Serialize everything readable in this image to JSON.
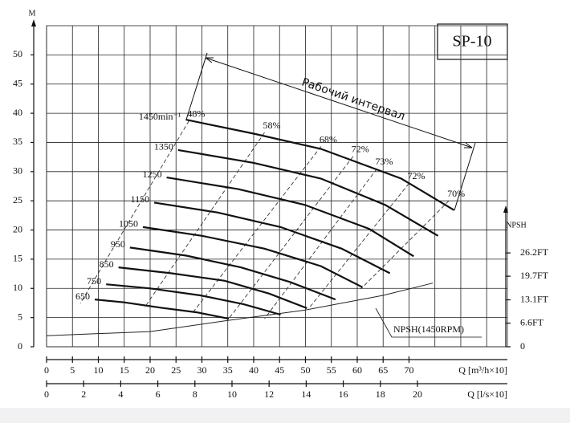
{
  "chart_data": {
    "type": "line",
    "title": "SP-10",
    "ylabel": "M",
    "y2label": "NPSH",
    "xlabel": "Q [m³/h×10]",
    "x2label": "Q [l/s×10]",
    "annotation": "Рабочий интервал",
    "xlim": [
      0,
      89
    ],
    "xticks": [
      0,
      5,
      10,
      15,
      20,
      25,
      30,
      35,
      40,
      45,
      50,
      55,
      60,
      65,
      70
    ],
    "x2lim": [
      0,
      24.85
    ],
    "x2ticks": [
      0,
      2,
      4,
      6,
      8,
      10,
      12,
      14,
      16,
      18,
      20
    ],
    "ylim": [
      0,
      55
    ],
    "yticks": [
      0,
      5,
      10,
      15,
      20,
      25,
      30,
      35,
      40,
      45,
      50
    ],
    "y2lim": [
      0,
      39
    ],
    "y2ticks": [
      0,
      {
        "value": 6.6,
        "label": "6.6FT"
      },
      {
        "value": 13.1,
        "label": "13.1FT"
      },
      {
        "value": 19.7,
        "label": "19.7FT"
      },
      {
        "value": 26.2,
        "label": "26.2FT"
      }
    ],
    "grid": true,
    "color": "#111111",
    "series": [
      {
        "name": "1450min⁻¹",
        "x": [
          26.9,
          40,
          53,
          68.5,
          78.7
        ],
        "y": [
          38.9,
          36.5,
          33.9,
          28.8,
          23.4
        ]
      },
      {
        "name": "1350",
        "x": [
          25.4,
          40,
          53,
          65.4,
          75.6
        ],
        "y": [
          33.7,
          31.5,
          28.8,
          24.3,
          19.0
        ]
      },
      {
        "name": "1250",
        "x": [
          23.2,
          37,
          49.9,
          62.3,
          70.9
        ],
        "y": [
          29.0,
          27.0,
          24.3,
          20.2,
          15.5
        ]
      },
      {
        "name": "1150",
        "x": [
          20.8,
          33,
          45.2,
          57,
          66.3
        ],
        "y": [
          24.7,
          23.0,
          20.5,
          16.8,
          12.6
        ]
      },
      {
        "name": "1050",
        "x": [
          18.6,
          30,
          42.1,
          53,
          61.0
        ],
        "y": [
          20.5,
          19.0,
          16.8,
          13.8,
          10.2
        ]
      },
      {
        "name": "950",
        "x": [
          16.1,
          27,
          37.5,
          47,
          55.8
        ],
        "y": [
          17.0,
          15.6,
          13.6,
          11.1,
          8.1
        ]
      },
      {
        "name": "850",
        "x": [
          13.9,
          24,
          34.4,
          43,
          50.3
        ],
        "y": [
          13.6,
          12.6,
          11.3,
          9.1,
          6.6
        ]
      },
      {
        "name": "750",
        "x": [
          11.5,
          20,
          29.7,
          38,
          45.2
        ],
        "y": [
          10.7,
          10.0,
          8.8,
          7.3,
          5.5
        ]
      },
      {
        "name": "650",
        "x": [
          9.3,
          15,
          22,
          29,
          35.2
        ],
        "y": [
          8.1,
          7.6,
          6.7,
          5.9,
          4.8
        ]
      }
    ],
    "efficiency_curves": [
      {
        "name": "48%",
        "x": [
          27.5,
          6.5
        ],
        "y": [
          38.7,
          7.4
        ]
      },
      {
        "name": "58%",
        "x": [
          42.1,
          18.9
        ],
        "y": [
          36.7,
          6.7
        ]
      },
      {
        "name": "68%",
        "x": [
          53,
          28.2
        ],
        "y": [
          34.3,
          5.8
        ]
      },
      {
        "name": "72%",
        "x": [
          59.2,
          35.2
        ],
        "y": [
          32.6,
          4.8
        ]
      },
      {
        "name": "73%",
        "x": [
          63.8,
          42.1
        ],
        "y": [
          30.5,
          4.8
        ]
      },
      {
        "name": "72%",
        "x": [
          70,
          50.6
        ],
        "y": [
          28,
          6.5
        ]
      },
      {
        "name": "70%",
        "x": [
          77.7,
          60.7
        ],
        "y": [
          25,
          9.9
        ]
      }
    ],
    "npsh": {
      "name": "NPSH(1450RPM)",
      "x": [
        0,
        20,
        35,
        50,
        65,
        74.6
      ],
      "y": [
        1.9,
        2.6,
        4.5,
        6.3,
        8.8,
        10.9
      ]
    }
  }
}
